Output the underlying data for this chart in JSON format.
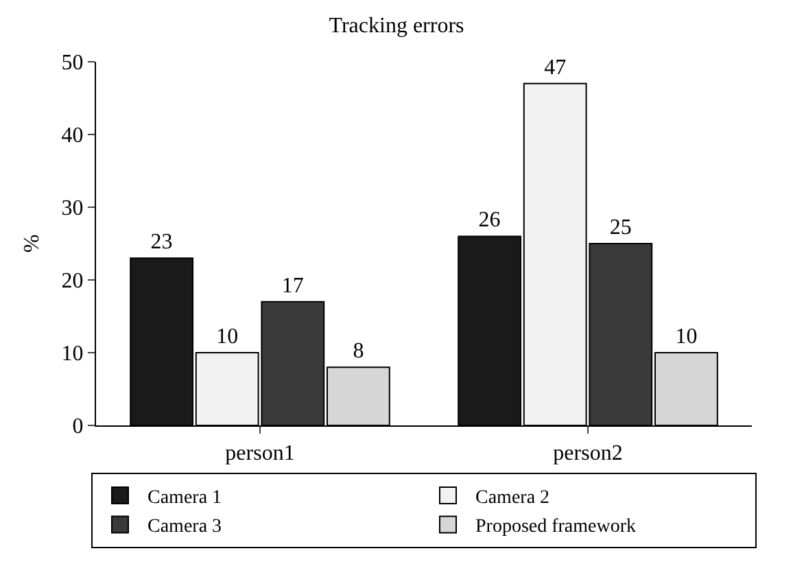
{
  "chart_data": {
    "type": "bar",
    "title": "Tracking errors",
    "ylabel": "%",
    "categories": [
      "person1",
      "person2"
    ],
    "series": [
      {
        "name": "Camera 1",
        "color": "#1a1a1a",
        "values": [
          23,
          26
        ]
      },
      {
        "name": "Camera 2",
        "color": "#f2f2f2",
        "values": [
          10,
          47
        ]
      },
      {
        "name": "Camera 3",
        "color": "#3a3a3a",
        "values": [
          17,
          25
        ]
      },
      {
        "name": "Proposed framework",
        "color": "#d6d6d6",
        "values": [
          8,
          10
        ]
      }
    ],
    "ylim": [
      0,
      50
    ],
    "yticks": [
      0,
      10,
      20,
      30,
      40,
      50
    ],
    "grid": false,
    "legend": "bottom",
    "data_labels": true
  }
}
